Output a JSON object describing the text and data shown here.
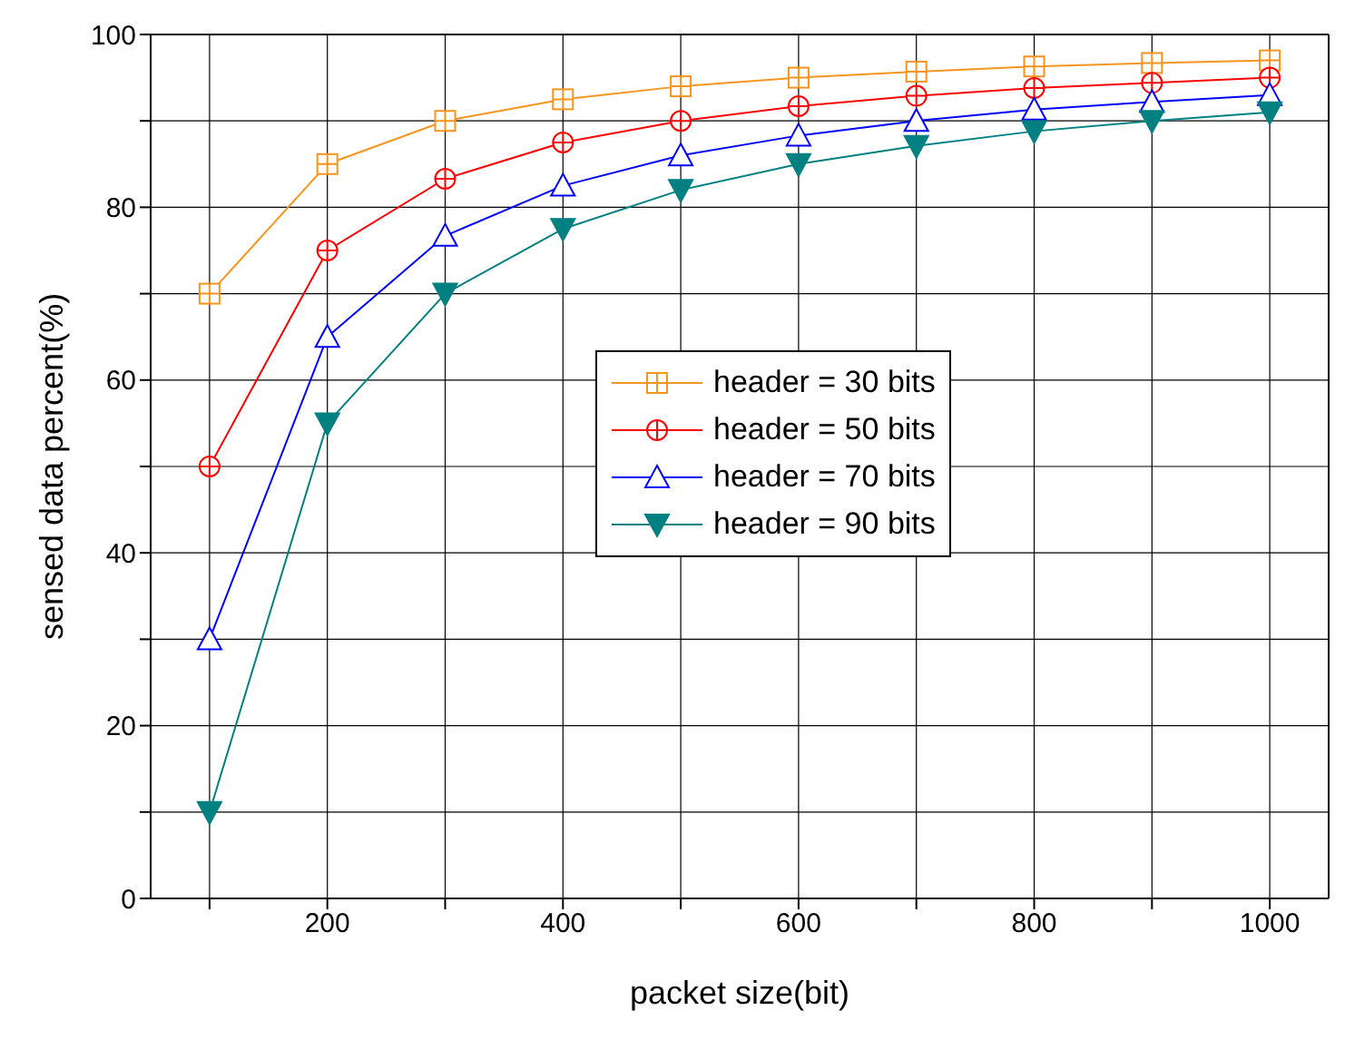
{
  "chart_data": {
    "type": "line",
    "xlabel": "packet size(bit)",
    "ylabel": "sensed data percent(%)",
    "x": [
      100,
      200,
      300,
      400,
      500,
      600,
      700,
      800,
      900,
      1000
    ],
    "series": [
      {
        "name": "header = 30 bits",
        "color": "#f7941d",
        "marker": "square",
        "values": [
          70,
          85,
          90,
          92.5,
          94,
          95,
          95.7,
          96.3,
          96.7,
          97
        ]
      },
      {
        "name": "header = 50 bits",
        "color": "#ff0000",
        "marker": "circle",
        "values": [
          50,
          75,
          83.3,
          87.5,
          90,
          91.7,
          92.9,
          93.8,
          94.4,
          95
        ]
      },
      {
        "name": "header = 70 bits",
        "color": "#0000ff",
        "marker": "triangle",
        "values": [
          30,
          65,
          76.7,
          82.5,
          86,
          88.3,
          90,
          91.3,
          92.2,
          93
        ]
      },
      {
        "name": "header = 90 bits",
        "color": "#008080",
        "marker": "triangle-down",
        "values": [
          10,
          55,
          70,
          77.5,
          82,
          85,
          87.1,
          88.8,
          90,
          91
        ]
      }
    ],
    "xlim": [
      50,
      1050
    ],
    "xticks": [
      {
        "value": 100,
        "label": null
      },
      200,
      {
        "value": 300,
        "label": null
      },
      400,
      {
        "value": 500,
        "label": null
      },
      600,
      {
        "value": 700,
        "label": null
      },
      800,
      {
        "value": 900,
        "label": null
      },
      1000
    ],
    "ylim": [
      0,
      100
    ],
    "yticks": [
      0,
      {
        "value": 10,
        "label": null
      },
      20,
      {
        "value": 30,
        "label": null
      },
      40,
      {
        "value": 50,
        "label": null
      },
      60,
      {
        "value": 70,
        "label": null
      },
      80,
      {
        "value": 90,
        "label": null
      },
      100
    ],
    "grid": true,
    "legend": "center"
  }
}
